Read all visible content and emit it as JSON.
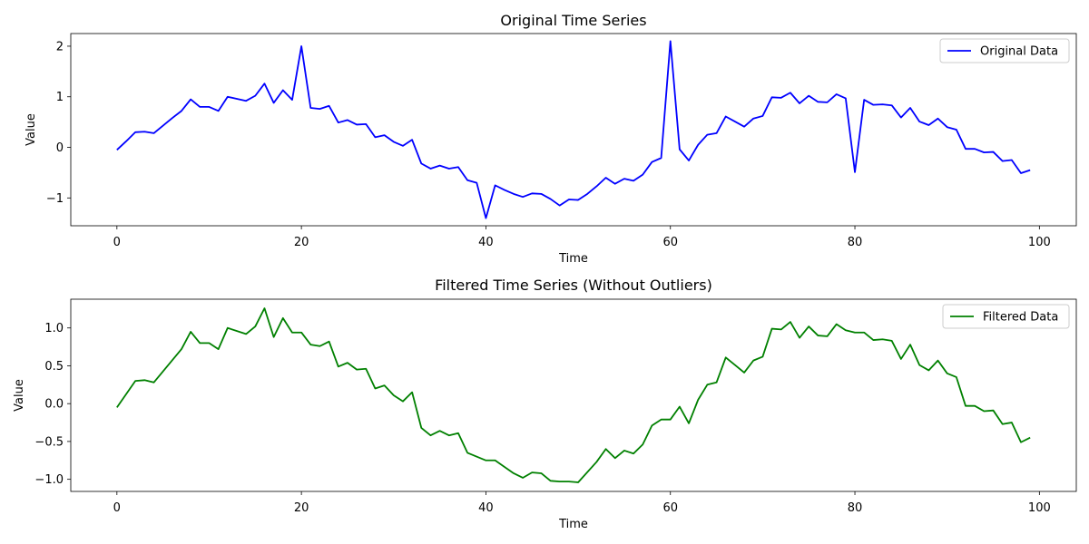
{
  "chart_data": [
    {
      "type": "line",
      "title": "Original Time Series",
      "xlabel": "Time",
      "ylabel": "Value",
      "xlim": [
        -5,
        104
      ],
      "ylim": [
        -1.55,
        2.25
      ],
      "xticks": [
        0,
        20,
        40,
        60,
        80,
        100
      ],
      "yticks": [
        -1,
        0,
        1,
        2
      ],
      "grid": false,
      "legend_position": "top-right",
      "series": [
        {
          "name": "Original Data",
          "color": "#0000ff",
          "x": [
            0,
            1,
            2,
            3,
            4,
            5,
            6,
            7,
            8,
            9,
            10,
            11,
            12,
            13,
            14,
            15,
            16,
            17,
            18,
            19,
            20,
            21,
            22,
            23,
            24,
            25,
            26,
            27,
            28,
            29,
            30,
            31,
            32,
            33,
            34,
            35,
            36,
            37,
            38,
            39,
            40,
            41,
            42,
            43,
            44,
            45,
            46,
            47,
            48,
            49,
            50,
            51,
            52,
            53,
            54,
            55,
            56,
            57,
            58,
            59,
            60,
            61,
            62,
            63,
            64,
            65,
            66,
            67,
            68,
            69,
            70,
            71,
            72,
            73,
            74,
            75,
            76,
            77,
            78,
            79,
            80,
            81,
            82,
            83,
            84,
            85,
            86,
            87,
            88,
            89,
            90,
            91,
            92,
            93,
            94,
            95,
            96,
            97,
            98,
            99
          ],
          "values": [
            -0.05,
            0.12,
            0.3,
            0.31,
            0.28,
            0.43,
            0.58,
            0.72,
            0.95,
            0.8,
            0.8,
            0.72,
            1.0,
            0.96,
            0.92,
            1.02,
            1.26,
            0.88,
            1.13,
            0.94,
            2.0,
            0.78,
            0.76,
            0.82,
            0.49,
            0.54,
            0.45,
            0.46,
            0.2,
            0.24,
            0.11,
            0.03,
            0.15,
            -0.32,
            -0.42,
            -0.36,
            -0.42,
            -0.39,
            -0.65,
            -0.7,
            -1.4,
            -0.75,
            -0.84,
            -0.92,
            -0.98,
            -0.91,
            -0.92,
            -1.02,
            -1.15,
            -1.03,
            -1.04,
            -0.92,
            -0.77,
            -0.6,
            -0.72,
            -0.62,
            -0.66,
            -0.54,
            -0.29,
            -0.21,
            2.1,
            -0.04,
            -0.26,
            0.05,
            0.25,
            0.28,
            0.61,
            0.51,
            0.41,
            0.57,
            0.62,
            0.99,
            0.98,
            1.08,
            0.87,
            1.02,
            0.9,
            0.89,
            1.05,
            0.97,
            -0.49,
            0.94,
            0.84,
            0.85,
            0.83,
            0.59,
            0.78,
            0.51,
            0.44,
            0.57,
            0.4,
            0.35,
            -0.03,
            -0.03,
            -0.1,
            -0.09,
            -0.27,
            -0.25,
            -0.51,
            -0.45
          ]
        }
      ]
    },
    {
      "type": "line",
      "title": "Filtered Time Series (Without Outliers)",
      "xlabel": "Time",
      "ylabel": "Value",
      "xlim": [
        -5,
        104
      ],
      "ylim": [
        -1.16,
        1.38
      ],
      "xticks": [
        0,
        20,
        40,
        60,
        80,
        100
      ],
      "yticks": [
        -1.0,
        -0.5,
        0.0,
        0.5,
        1.0
      ],
      "ytick_labels": [
        "−1.0",
        "−0.5",
        "0.0",
        "0.5",
        "1.0"
      ],
      "grid": false,
      "legend_position": "top-right",
      "series": [
        {
          "name": "Filtered Data",
          "color": "#008000",
          "x": [
            0,
            2,
            3,
            4,
            7,
            8,
            9,
            10,
            11,
            12,
            14,
            15,
            16,
            17,
            18,
            19,
            20,
            21,
            22,
            23,
            24,
            25,
            26,
            27,
            28,
            29,
            30,
            31,
            32,
            33,
            34,
            35,
            36,
            37,
            38,
            40,
            41,
            43,
            44,
            45,
            46,
            47,
            48,
            49,
            50,
            52,
            53,
            54,
            55,
            56,
            57,
            58,
            59,
            60,
            61,
            62,
            63,
            64,
            65,
            66,
            67,
            68,
            69,
            70,
            71,
            72,
            73,
            74,
            75,
            76,
            77,
            78,
            79,
            80,
            81,
            82,
            83,
            84,
            85,
            86,
            87,
            88,
            89,
            90,
            91,
            92,
            93,
            94,
            95,
            96,
            97,
            98,
            99
          ],
          "values": [
            -0.05,
            0.3,
            0.31,
            0.28,
            0.72,
            0.95,
            0.8,
            0.8,
            0.72,
            1.0,
            0.92,
            1.02,
            1.26,
            0.88,
            1.13,
            0.94,
            0.94,
            0.78,
            0.76,
            0.82,
            0.49,
            0.54,
            0.45,
            0.46,
            0.2,
            0.24,
            0.11,
            0.03,
            0.15,
            -0.32,
            -0.42,
            -0.36,
            -0.42,
            -0.39,
            -0.65,
            -0.75,
            -0.75,
            -0.92,
            -0.98,
            -0.91,
            -0.92,
            -1.02,
            -1.03,
            -1.03,
            -1.04,
            -0.77,
            -0.6,
            -0.72,
            -0.62,
            -0.66,
            -0.54,
            -0.29,
            -0.21,
            -0.21,
            -0.04,
            -0.26,
            0.05,
            0.25,
            0.28,
            0.61,
            0.51,
            0.41,
            0.57,
            0.62,
            0.99,
            0.98,
            1.08,
            0.87,
            1.02,
            0.9,
            0.89,
            1.05,
            0.97,
            0.94,
            0.94,
            0.84,
            0.85,
            0.83,
            0.59,
            0.78,
            0.51,
            0.44,
            0.57,
            0.4,
            0.35,
            -0.03,
            -0.03,
            -0.1,
            -0.09,
            -0.27,
            -0.25,
            -0.51,
            -0.45
          ]
        }
      ]
    }
  ]
}
